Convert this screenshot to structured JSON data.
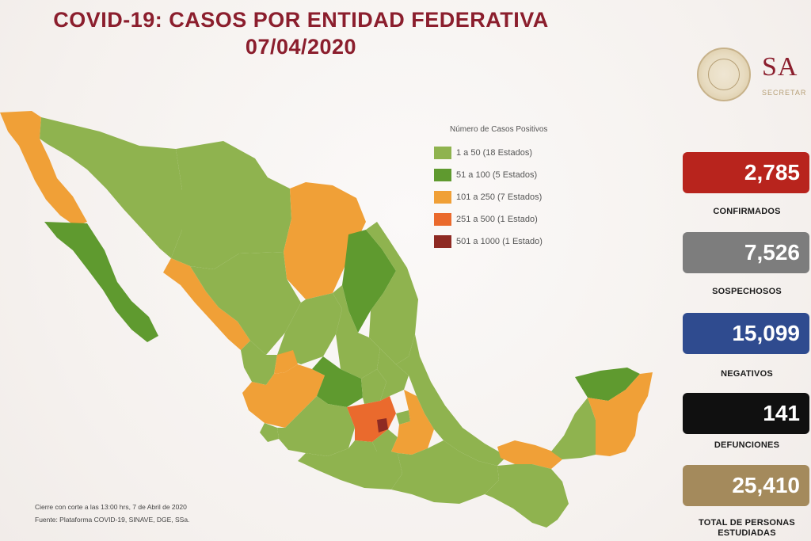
{
  "header": {
    "title": "COVID-19: CASOS POR ENTIDAD FEDERATIVA",
    "date": "07/04/2020"
  },
  "logo": {
    "text": "SA",
    "subtext": "SECRETAR"
  },
  "legend": {
    "title": "Número de Casos Positivos",
    "items": [
      {
        "label": "1 a    50  (18 Estados)",
        "color": "#8fb34f"
      },
      {
        "label": "51 a   100  (5 Estados)",
        "color": "#5f9a2f"
      },
      {
        "label": "101 a  250  (7 Estados)",
        "color": "#f0a037"
      },
      {
        "label": "251 a  500  (1 Estado)",
        "color": "#ea6a2d"
      },
      {
        "label": "501 a 1000  (1 Estado)",
        "color": "#8e2a23"
      }
    ]
  },
  "stats": [
    {
      "value": "2,785",
      "label": "CONFIRMADOS",
      "color": "#b8241d"
    },
    {
      "value": "7,526",
      "label": "SOSPECHOSOS",
      "color": "#7d7d7d"
    },
    {
      "value": "15,099",
      "label": "NEGATIVOS",
      "color": "#2f4b8f"
    },
    {
      "value": "141",
      "label": "DEFUNCIONES",
      "color": "#101010"
    },
    {
      "value": "25,410",
      "label": "TOTAL DE PERSONAS ESTUDIADAS",
      "color": "#a48a5c"
    }
  ],
  "footer": {
    "line1": "Cierre con corte a las 13:00 hrs, 7 de Abril de 2020",
    "line2": "Fuente: Plataforma COVID-19, SINAVE, DGE, SSa."
  }
}
